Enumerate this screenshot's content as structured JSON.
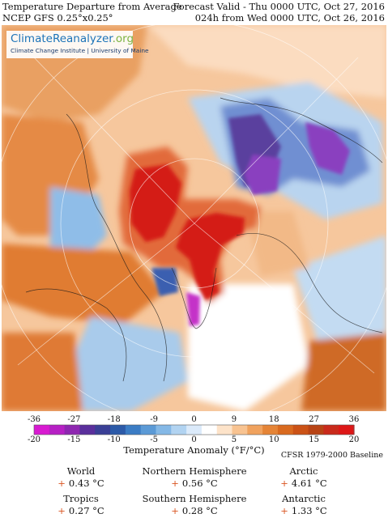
{
  "header": {
    "title": "Temperature Departure from Average",
    "model": "NCEP GFS 0.25°x0.25°",
    "valid": "Forecast Valid - Thu 0000 UTC, Oct 27, 2016",
    "init": "024h from Wed 0000 UTC, Oct 26, 2016"
  },
  "logo": {
    "name_part1": "ClimateReanalyzer",
    "name_part2": ".org",
    "subtitle": "Climate Change Institute | University of Maine"
  },
  "colorbar": {
    "title": "Temperature Anomaly (°F/°C)",
    "baseline": "CFSR 1979-2000 Baseline",
    "f_ticks": [
      "-36",
      "-27",
      "-18",
      "-9",
      "0",
      "9",
      "18",
      "27",
      "36"
    ],
    "c_ticks": [
      "-20",
      "-15",
      "-10",
      "-5",
      "0",
      "5",
      "10",
      "15",
      "20"
    ],
    "colors": [
      "#d81ad1",
      "#b620c4",
      "#8e27b0",
      "#5a2f9c",
      "#3a3f96",
      "#2c5aa8",
      "#3b7cc4",
      "#5b9ad6",
      "#84b8e6",
      "#b1d3f1",
      "#dbeafa",
      "#ffffff",
      "#fde3c9",
      "#f8c391",
      "#f0a25e",
      "#e58436",
      "#d96a1f",
      "#cb5216",
      "#b84314",
      "#c92a1b",
      "#dd1717"
    ]
  },
  "stats": [
    {
      "label": "World",
      "value": "0.43 °C",
      "sign": "+"
    },
    {
      "label": "Northern Hemisphere",
      "value": "0.56 °C",
      "sign": "+"
    },
    {
      "label": "Arctic",
      "value": "4.61 °C",
      "sign": "+"
    },
    {
      "label": "Tropics",
      "value": "0.27 °C",
      "sign": "+"
    },
    {
      "label": "Southern Hemisphere",
      "value": "0.28 °C",
      "sign": "+"
    },
    {
      "label": "Antarctic",
      "value": "1.33 °C",
      "sign": "+"
    }
  ]
}
